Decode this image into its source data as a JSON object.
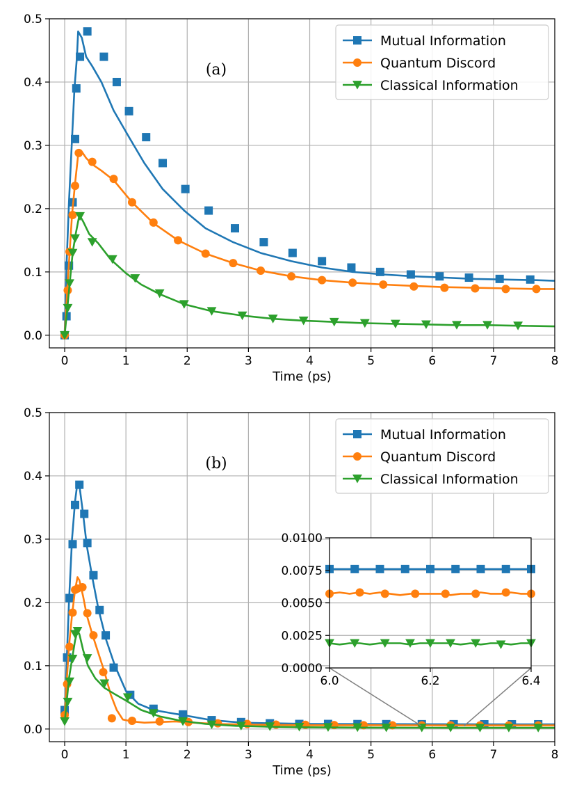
{
  "chart_data": [
    {
      "type": "line",
      "panel_label": "(a)",
      "xlabel": "Time (ps)",
      "ylabel": "",
      "xlim": [
        -0.25,
        8
      ],
      "ylim": [
        -0.02,
        0.5
      ],
      "xticks": [
        "0",
        "1",
        "2",
        "3",
        "4",
        "5",
        "6",
        "7",
        "8"
      ],
      "yticks": [
        "0.0",
        "0.1",
        "0.2",
        "0.3",
        "0.4",
        "0.5"
      ],
      "grid": true,
      "legend": "top-right",
      "series": [
        {
          "name": "Mutual Information",
          "color": "#1f77b4",
          "marker": "square",
          "x": [
            0,
            0.03,
            0.07,
            0.12,
            0.16,
            0.2,
            0.22,
            0.28,
            0.35,
            0.45,
            0.6,
            0.8,
            1.05,
            1.3,
            1.6,
            1.95,
            2.3,
            2.75,
            3.2,
            3.7,
            4.2,
            4.7,
            5.2,
            5.7,
            6.2,
            6.7,
            7.2,
            7.7,
            8
          ],
          "y": [
            0,
            0.11,
            0.21,
            0.31,
            0.39,
            0.44,
            0.48,
            0.47,
            0.44,
            0.425,
            0.4,
            0.355,
            0.313,
            0.272,
            0.231,
            0.197,
            0.169,
            0.147,
            0.13,
            0.117,
            0.107,
            0.1,
            0.096,
            0.093,
            0.091,
            0.089,
            0.088,
            0.087,
            0.086
          ],
          "marker_x": [
            0.0,
            0.03,
            0.07,
            0.13,
            0.17,
            0.19,
            0.25,
            0.37,
            0.64,
            0.85,
            1.05,
            1.33,
            1.6,
            1.97,
            2.35,
            2.78,
            3.25,
            3.72,
            4.2,
            4.68,
            5.15,
            5.65,
            6.12,
            6.6,
            7.1,
            7.6
          ],
          "marker_y": [
            0.0,
            0.03,
            0.11,
            0.21,
            0.31,
            0.39,
            0.44,
            0.48,
            0.44,
            0.4,
            0.354,
            0.313,
            0.272,
            0.231,
            0.197,
            0.169,
            0.147,
            0.13,
            0.117,
            0.107,
            0.1,
            0.096,
            0.093,
            0.091,
            0.089,
            0.088
          ]
        },
        {
          "name": "Quantum Discord",
          "color": "#ff7f0e",
          "marker": "circle",
          "x": [
            0,
            0.04,
            0.08,
            0.12,
            0.17,
            0.22,
            0.28,
            0.35,
            0.45,
            0.6,
            0.8,
            1.1,
            1.45,
            1.85,
            2.3,
            2.75,
            3.2,
            3.7,
            4.2,
            4.7,
            5.2,
            5.7,
            6.2,
            6.7,
            7.2,
            7.7,
            8
          ],
          "y": [
            0,
            0.07,
            0.13,
            0.19,
            0.24,
            0.285,
            0.29,
            0.28,
            0.27,
            0.26,
            0.245,
            0.21,
            0.177,
            0.15,
            0.129,
            0.114,
            0.102,
            0.093,
            0.087,
            0.083,
            0.08,
            0.078,
            0.076,
            0.075,
            0.074,
            0.073,
            0.073
          ],
          "marker_x": [
            0.0,
            0.05,
            0.08,
            0.13,
            0.17,
            0.23,
            0.45,
            0.8,
            1.1,
            1.45,
            1.85,
            2.3,
            2.75,
            3.2,
            3.7,
            4.2,
            4.7,
            5.2,
            5.7,
            6.2,
            6.7,
            7.2,
            7.7
          ],
          "marker_y": [
            0.0,
            0.071,
            0.132,
            0.19,
            0.236,
            0.288,
            0.274,
            0.247,
            0.21,
            0.178,
            0.15,
            0.129,
            0.114,
            0.102,
            0.093,
            0.087,
            0.083,
            0.08,
            0.077,
            0.075,
            0.074,
            0.073,
            0.073
          ]
        },
        {
          "name": "Classical Information",
          "color": "#2ca02c",
          "marker": "triangle-down",
          "x": [
            0,
            0.04,
            0.08,
            0.13,
            0.18,
            0.24,
            0.3,
            0.4,
            0.55,
            0.75,
            1.0,
            1.25,
            1.55,
            1.95,
            2.4,
            2.9,
            3.4,
            3.9,
            4.4,
            4.9,
            5.4,
            5.9,
            6.4,
            6.9,
            7.4,
            8
          ],
          "y": [
            0,
            0.04,
            0.08,
            0.13,
            0.16,
            0.19,
            0.18,
            0.16,
            0.145,
            0.12,
            0.098,
            0.08,
            0.065,
            0.049,
            0.038,
            0.031,
            0.026,
            0.023,
            0.021,
            0.019,
            0.018,
            0.017,
            0.016,
            0.016,
            0.015,
            0.014
          ],
          "marker_x": [
            0.0,
            0.05,
            0.08,
            0.13,
            0.17,
            0.25,
            0.45,
            0.78,
            1.15,
            1.55,
            1.95,
            2.4,
            2.9,
            3.4,
            3.9,
            4.4,
            4.9,
            5.4,
            5.9,
            6.4,
            6.9,
            7.4
          ],
          "marker_y": [
            0.0,
            0.043,
            0.082,
            0.13,
            0.153,
            0.188,
            0.147,
            0.12,
            0.09,
            0.066,
            0.049,
            0.038,
            0.031,
            0.026,
            0.023,
            0.021,
            0.019,
            0.018,
            0.017,
            0.016,
            0.016,
            0.015
          ]
        }
      ]
    },
    {
      "type": "line",
      "panel_label": "(b)",
      "xlabel": "Time (ps)",
      "ylabel": "",
      "xlim": [
        -0.25,
        8
      ],
      "ylim": [
        -0.02,
        0.5
      ],
      "xticks": [
        "0",
        "1",
        "2",
        "3",
        "4",
        "5",
        "6",
        "7",
        "8"
      ],
      "yticks": [
        "0.0",
        "0.1",
        "0.2",
        "0.3",
        "0.4",
        "0.5"
      ],
      "grid": true,
      "legend": "top-right",
      "series": [
        {
          "name": "Mutual Information",
          "color": "#1f77b4",
          "marker": "square",
          "x": [
            0,
            0.03,
            0.07,
            0.12,
            0.17,
            0.21,
            0.24,
            0.3,
            0.36,
            0.45,
            0.55,
            0.68,
            0.82,
            1.0,
            1.2,
            1.45,
            1.75,
            2.05,
            2.4,
            2.9,
            3.4,
            4.0,
            5.0,
            6.0,
            7.0,
            8.0
          ],
          "y": [
            0.02,
            0.1,
            0.2,
            0.3,
            0.36,
            0.39,
            0.385,
            0.34,
            0.29,
            0.24,
            0.19,
            0.14,
            0.1,
            0.06,
            0.04,
            0.03,
            0.025,
            0.02,
            0.014,
            0.01,
            0.009,
            0.008,
            0.0078,
            0.0076,
            0.0075,
            0.0075
          ],
          "marker_x": [
            0.0,
            0.04,
            0.08,
            0.13,
            0.17,
            0.24,
            0.32,
            0.37,
            0.47,
            0.57,
            0.67,
            0.8,
            1.07,
            1.45,
            1.93,
            2.4,
            2.88,
            3.35,
            3.83,
            4.3,
            4.78,
            5.25,
            5.83,
            6.35,
            6.85,
            7.3,
            7.73
          ],
          "marker_y": [
            0.03,
            0.113,
            0.207,
            0.292,
            0.354,
            0.386,
            0.34,
            0.294,
            0.243,
            0.188,
            0.148,
            0.097,
            0.054,
            0.032,
            0.023,
            0.014,
            0.011,
            0.009,
            0.008,
            0.008,
            0.0078,
            0.0077,
            0.0076,
            0.0076,
            0.0075,
            0.0075,
            0.0075
          ]
        },
        {
          "name": "Quantum Discord",
          "color": "#ff7f0e",
          "marker": "circle",
          "x": [
            0,
            0.03,
            0.07,
            0.12,
            0.17,
            0.21,
            0.24,
            0.3,
            0.36,
            0.45,
            0.55,
            0.65,
            0.75,
            0.85,
            0.95,
            1.1,
            1.3,
            1.55,
            1.8,
            2.1,
            2.5,
            3.0,
            4.0,
            5.0,
            6.0,
            7.0,
            8.0
          ],
          "y": [
            0.02,
            0.07,
            0.13,
            0.18,
            0.22,
            0.24,
            0.235,
            0.21,
            0.18,
            0.15,
            0.12,
            0.09,
            0.055,
            0.03,
            0.015,
            0.012,
            0.01,
            0.011,
            0.012,
            0.01,
            0.008,
            0.007,
            0.006,
            0.006,
            0.0058,
            0.0057,
            0.0057
          ],
          "marker_x": [
            0.0,
            0.04,
            0.08,
            0.13,
            0.17,
            0.21,
            0.29,
            0.37,
            0.47,
            0.63,
            0.77,
            1.1,
            1.55,
            2.02,
            2.5,
            2.98,
            3.45,
            3.93,
            4.4,
            4.88,
            5.35,
            5.83,
            6.3,
            6.78,
            7.25,
            7.73
          ],
          "marker_y": [
            0.022,
            0.071,
            0.13,
            0.184,
            0.22,
            0.222,
            0.224,
            0.183,
            0.148,
            0.09,
            0.017,
            0.013,
            0.012,
            0.011,
            0.009,
            0.008,
            0.007,
            0.0066,
            0.0063,
            0.006,
            0.0059,
            0.0058,
            0.0058,
            0.0057,
            0.0057,
            0.0057
          ]
        },
        {
          "name": "Classical Information",
          "color": "#2ca02c",
          "marker": "triangle-down",
          "x": [
            0,
            0.03,
            0.07,
            0.12,
            0.17,
            0.21,
            0.24,
            0.3,
            0.38,
            0.5,
            0.65,
            0.82,
            1.0,
            1.25,
            1.55,
            1.9,
            2.3,
            2.8,
            3.4,
            4.0,
            5.0,
            6.0,
            7.0,
            8.0
          ],
          "y": [
            0.01,
            0.04,
            0.08,
            0.11,
            0.14,
            0.155,
            0.15,
            0.125,
            0.1,
            0.08,
            0.065,
            0.055,
            0.045,
            0.03,
            0.02,
            0.013,
            0.008,
            0.005,
            0.0035,
            0.0028,
            0.0022,
            0.002,
            0.0019,
            0.0019
          ],
          "marker_x": [
            0.0,
            0.05,
            0.08,
            0.13,
            0.17,
            0.21,
            0.37,
            0.65,
            1.03,
            1.45,
            1.93,
            2.4,
            2.88,
            3.35,
            3.83,
            4.3,
            4.78,
            5.25,
            5.83,
            6.3,
            6.78,
            7.25,
            7.73
          ],
          "marker_y": [
            0.012,
            0.043,
            0.075,
            0.111,
            0.15,
            0.155,
            0.112,
            0.072,
            0.05,
            0.025,
            0.012,
            0.007,
            0.005,
            0.004,
            0.0033,
            0.0028,
            0.0025,
            0.0022,
            0.002,
            0.002,
            0.0019,
            0.0019,
            0.0019
          ]
        }
      ],
      "inset": {
        "xlim": [
          6.0,
          6.4
        ],
        "ylim": [
          0.0,
          0.01
        ],
        "xticks": [
          "6.0",
          "6.2",
          "6.4"
        ],
        "yticks": [
          "0.0000",
          "0.0025",
          "0.0050",
          "0.0075",
          "0.0100"
        ],
        "series": [
          {
            "name": "Mutual Information",
            "color": "#1f77b4",
            "marker": "square",
            "x": [
              6.0,
              6.05,
              6.1,
              6.15,
              6.2,
              6.25,
              6.3,
              6.35,
              6.4
            ],
            "y": [
              0.0076,
              0.0076,
              0.0076,
              0.0076,
              0.0076,
              0.0076,
              0.0076,
              0.0076,
              0.0076
            ],
            "marker_x": [
              6.0,
              6.05,
              6.1,
              6.15,
              6.2,
              6.25,
              6.3,
              6.35,
              6.4
            ],
            "marker_y": [
              0.0076,
              0.0076,
              0.0076,
              0.0076,
              0.0076,
              0.0076,
              0.0076,
              0.0076,
              0.0076
            ]
          },
          {
            "name": "Quantum Discord",
            "color": "#ff7f0e",
            "marker": "circle",
            "x": [
              6.0,
              6.02,
              6.04,
              6.06,
              6.08,
              6.1,
              6.12,
              6.14,
              6.16,
              6.18,
              6.2,
              6.22,
              6.24,
              6.26,
              6.28,
              6.3,
              6.32,
              6.34,
              6.36,
              6.38,
              6.4
            ],
            "y": [
              0.0057,
              0.0058,
              0.0057,
              0.0058,
              0.0057,
              0.0058,
              0.0057,
              0.0056,
              0.0057,
              0.0057,
              0.0057,
              0.0057,
              0.0056,
              0.0057,
              0.0057,
              0.0058,
              0.0057,
              0.0057,
              0.0058,
              0.0057,
              0.0057
            ],
            "marker_x": [
              6.0,
              6.06,
              6.11,
              6.17,
              6.23,
              6.29,
              6.35,
              6.4
            ],
            "marker_y": [
              0.0057,
              0.0058,
              0.0057,
              0.0057,
              0.0057,
              0.0057,
              0.0058,
              0.0057
            ]
          },
          {
            "name": "Classical Information",
            "color": "#2ca02c",
            "marker": "triangle-down",
            "x": [
              6.0,
              6.02,
              6.04,
              6.06,
              6.08,
              6.1,
              6.12,
              6.14,
              6.16,
              6.18,
              6.2,
              6.22,
              6.24,
              6.26,
              6.28,
              6.3,
              6.32,
              6.34,
              6.36,
              6.38,
              6.4
            ],
            "y": [
              0.0019,
              0.0018,
              0.0019,
              0.0019,
              0.0018,
              0.0019,
              0.0019,
              0.0019,
              0.0018,
              0.0019,
              0.0019,
              0.0019,
              0.0019,
              0.0018,
              0.0019,
              0.0018,
              0.0019,
              0.0019,
              0.0018,
              0.0019,
              0.0019
            ],
            "marker_x": [
              6.0,
              6.05,
              6.11,
              6.16,
              6.2,
              6.24,
              6.29,
              6.34,
              6.4
            ],
            "marker_y": [
              0.0019,
              0.0019,
              0.0019,
              0.0019,
              0.0019,
              0.0019,
              0.0019,
              0.0018,
              0.0019
            ]
          }
        ]
      }
    }
  ]
}
